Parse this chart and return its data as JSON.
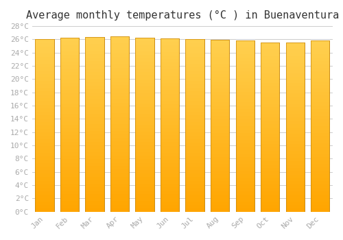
{
  "title": "Average monthly temperatures (°C ) in Buenaventura",
  "months": [
    "Jan",
    "Feb",
    "Mar",
    "Apr",
    "May",
    "Jun",
    "Jul",
    "Aug",
    "Sep",
    "Oct",
    "Nov",
    "Dec"
  ],
  "temperatures": [
    26.0,
    26.3,
    26.4,
    26.5,
    26.3,
    26.2,
    26.0,
    25.9,
    25.8,
    25.5,
    25.5,
    25.8
  ],
  "ylim": [
    0,
    28
  ],
  "yticks": [
    0,
    2,
    4,
    6,
    8,
    10,
    12,
    14,
    16,
    18,
    20,
    22,
    24,
    26,
    28
  ],
  "bar_color_top": "#FDB913",
  "bar_color_bottom": "#FFA500",
  "bar_edge_color": "#C8860A",
  "background_color": "#FFFFFF",
  "grid_color": "#CCCCCC",
  "title_fontsize": 11,
  "tick_fontsize": 8,
  "tick_color": "#AAAAAA",
  "font_family": "monospace"
}
